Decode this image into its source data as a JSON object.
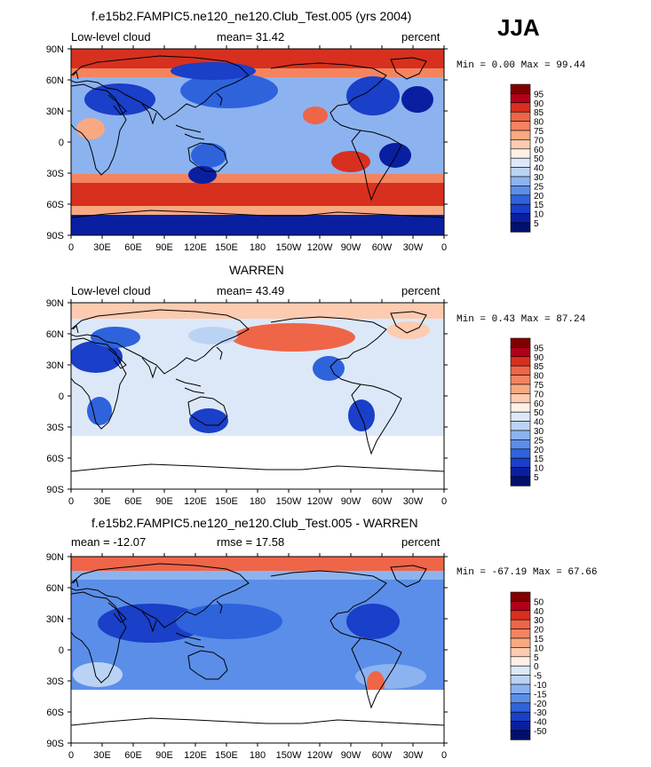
{
  "season": "JJA",
  "colors": {
    "land": "#1a2a8a",
    "white": "#ffffff"
  },
  "lat_ticks": [
    "90N",
    "60N",
    "30N",
    "0",
    "30S",
    "60S",
    "90S"
  ],
  "lon_ticks": [
    "0",
    "30E",
    "60E",
    "90E",
    "120E",
    "150E",
    "180",
    "150W",
    "120W",
    "90W",
    "60W",
    "30W",
    "0"
  ],
  "panels": [
    {
      "title": "f.e15b2.FAMPIC5.ne120_ne120.Club_Test.005 (yrs 2004)",
      "left_label": "Low-level cloud",
      "center_label": "mean=  31.42",
      "right_label": "percent",
      "minmax": "Min =    0.00 Max =  99.44",
      "colorbar": {
        "labels": [
          "95",
          "90",
          "85",
          "80",
          "75",
          "70",
          "60",
          "50",
          "40",
          "30",
          "25",
          "20",
          "15",
          "10",
          "5"
        ],
        "colors": [
          "#800000",
          "#b2001a",
          "#d7301f",
          "#ef6548",
          "#f4845f",
          "#f9a982",
          "#fccbb0",
          "#fef0e6",
          "#dce8f8",
          "#bad3f5",
          "#8cb3f0",
          "#5b8ee8",
          "#2e63dc",
          "#1a3fc8",
          "#0a1fa0",
          "#00106b"
        ]
      }
    },
    {
      "title": "WARREN",
      "left_label": "Low-level cloud",
      "center_label": "mean=  43.49",
      "right_label": "percent",
      "minmax": "Min =    0.43 Max =  87.24",
      "colorbar": {
        "labels": [
          "95",
          "90",
          "85",
          "80",
          "75",
          "70",
          "60",
          "50",
          "40",
          "30",
          "25",
          "20",
          "15",
          "10",
          "5"
        ],
        "colors": [
          "#800000",
          "#b2001a",
          "#d7301f",
          "#ef6548",
          "#f4845f",
          "#f9a982",
          "#fccbb0",
          "#fef0e6",
          "#dce8f8",
          "#bad3f5",
          "#8cb3f0",
          "#5b8ee8",
          "#2e63dc",
          "#1a3fc8",
          "#0a1fa0",
          "#00106b"
        ]
      }
    },
    {
      "title": "f.e15b2.FAMPIC5.ne120_ne120.Club_Test.005 - WARREN",
      "left_label": "mean = -12.07",
      "center_label": "rmse =  17.58",
      "right_label": "percent",
      "minmax": "Min = -67.19 Max =  67.66",
      "colorbar": {
        "labels": [
          "50",
          "40",
          "30",
          "20",
          "15",
          "10",
          "5",
          "0",
          "-5",
          "-10",
          "-15",
          "-20",
          "-30",
          "-40",
          "-50"
        ],
        "colors": [
          "#800000",
          "#b2001a",
          "#d7301f",
          "#ef6548",
          "#f4845f",
          "#f9a982",
          "#fccbb0",
          "#fef0e6",
          "#dce8f8",
          "#bad3f5",
          "#8cb3f0",
          "#5b8ee8",
          "#2e63dc",
          "#1a3fc8",
          "#0a1fa0",
          "#00106b"
        ]
      }
    }
  ]
}
